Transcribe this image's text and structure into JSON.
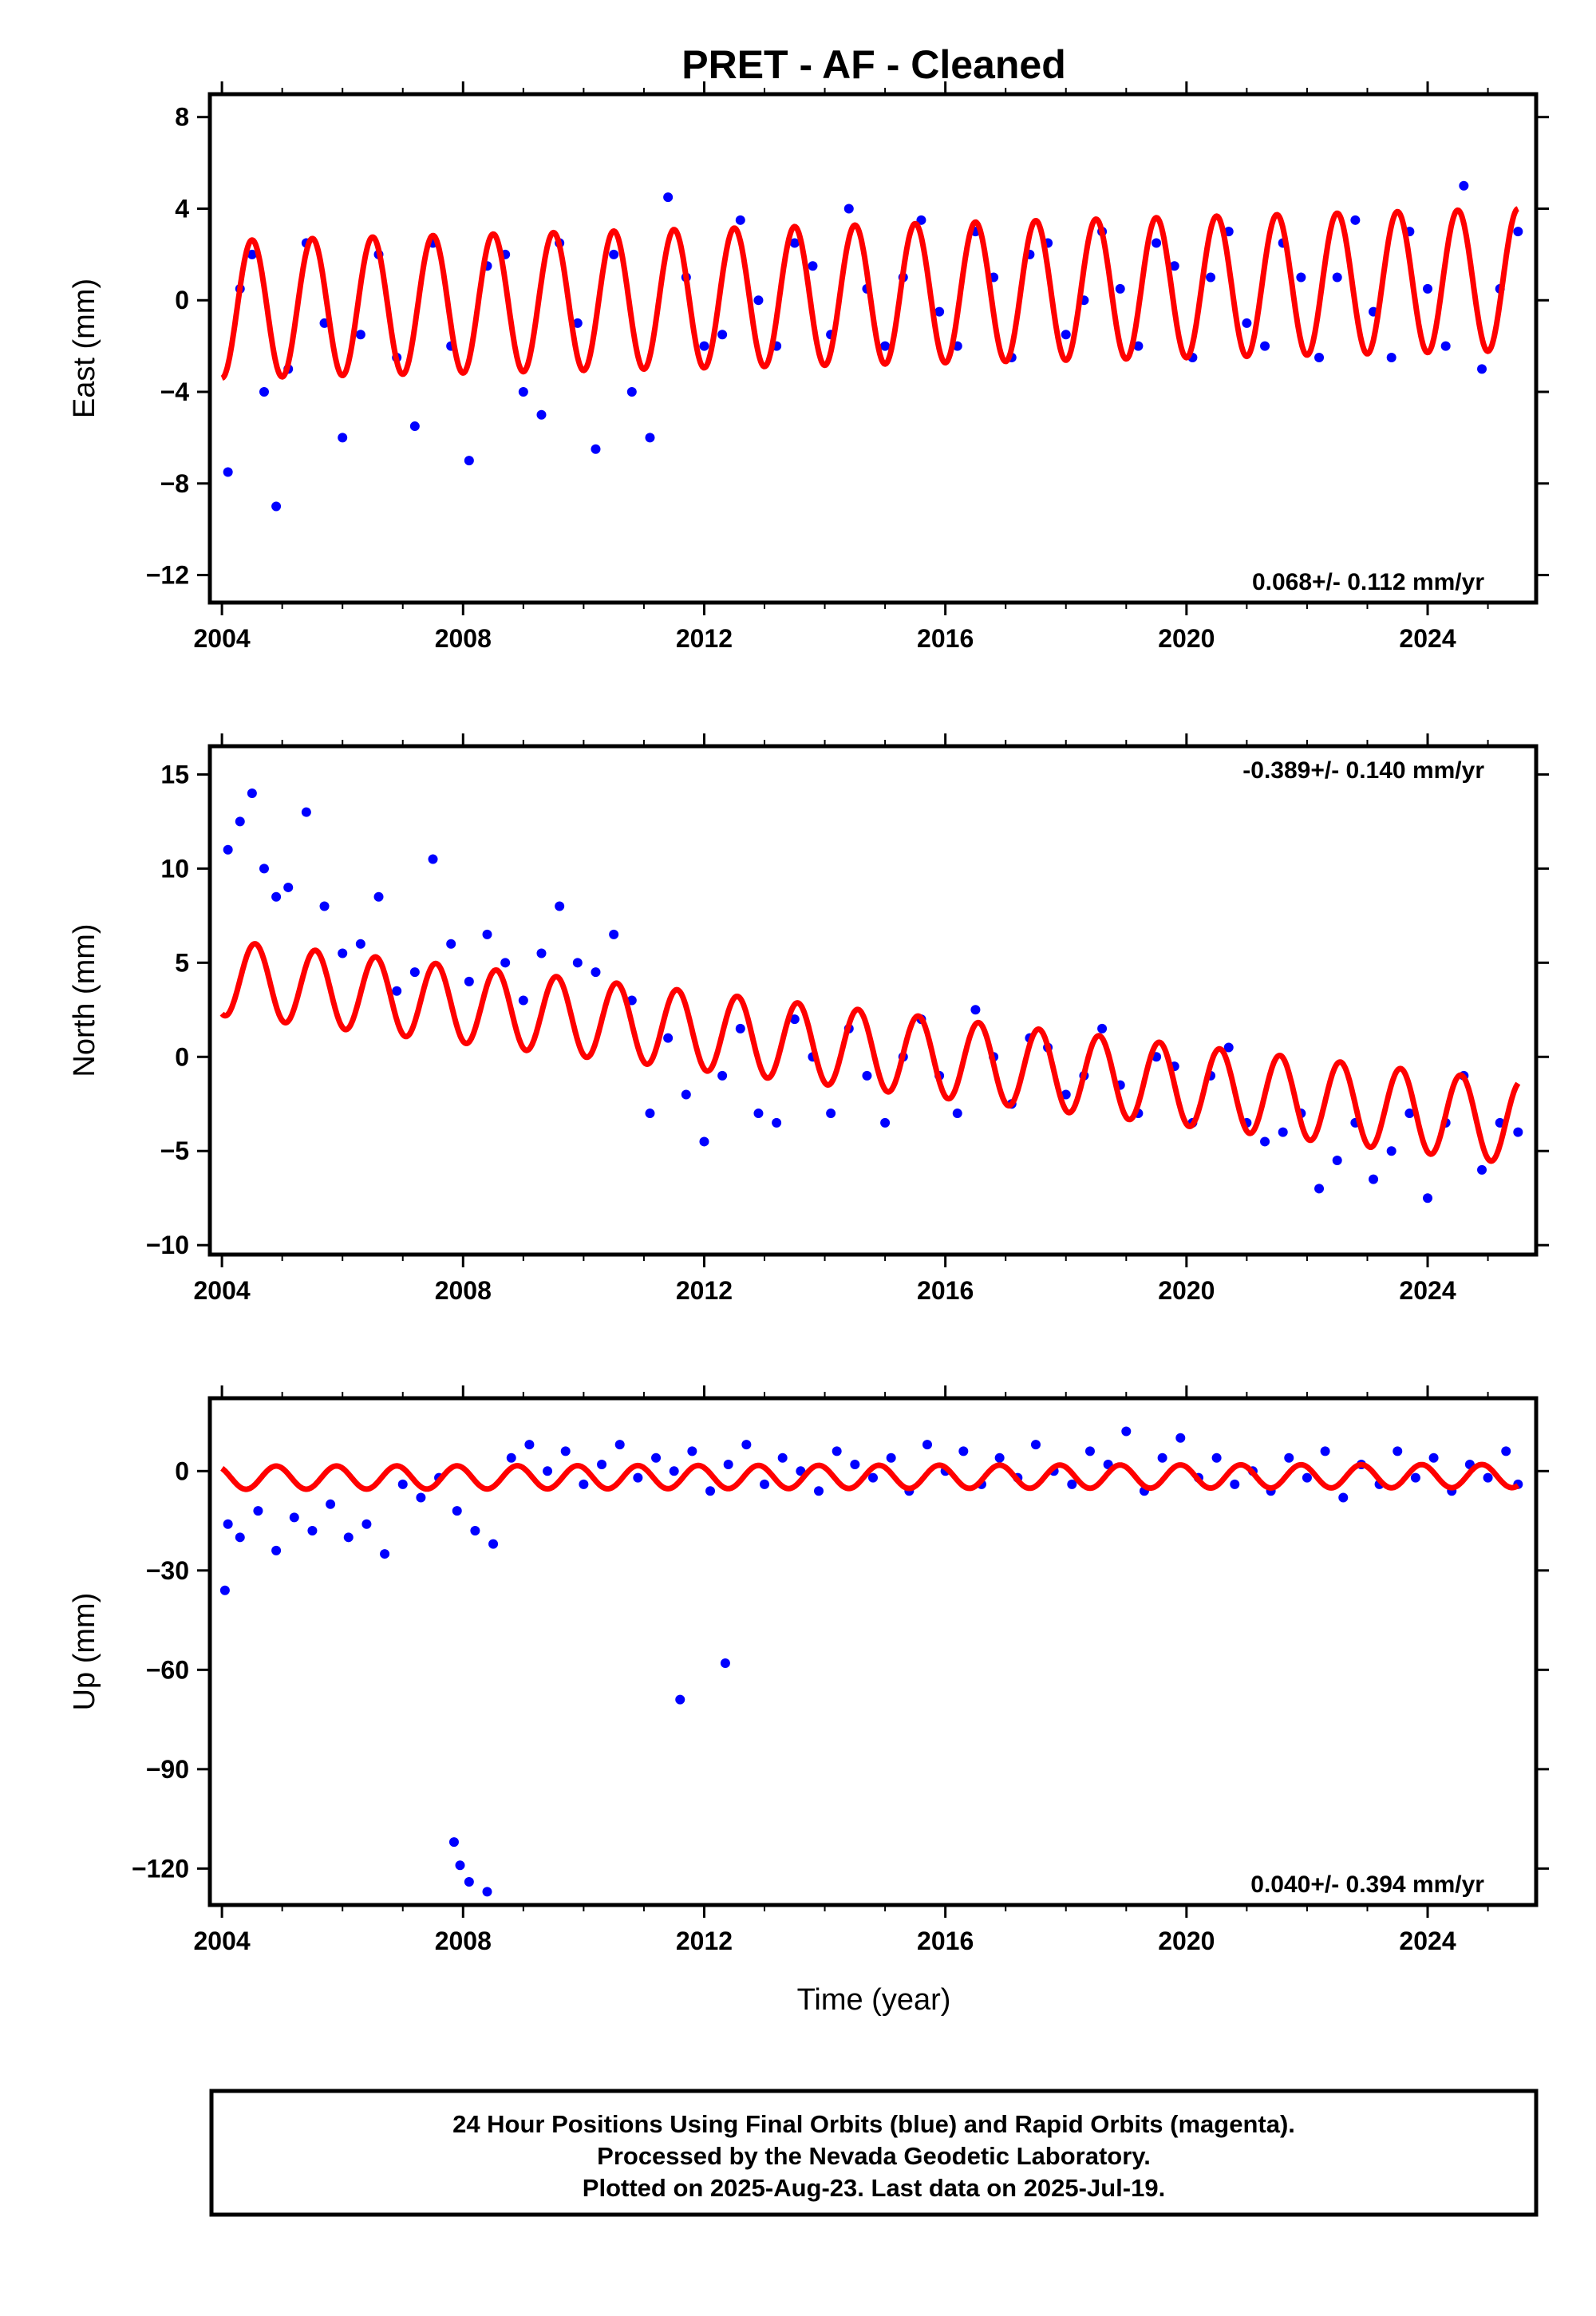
{
  "chart_data": {
    "type": "scatter",
    "title": "PRET  - AF - Cleaned",
    "xlabel": "Time (year)",
    "xlim": [
      2003.8,
      2025.8
    ],
    "x_ticks": [
      2004,
      2008,
      2012,
      2016,
      2020,
      2024
    ],
    "colors": {
      "observed": "#0000ff",
      "model": "#ff0000",
      "frame": "#000000"
    },
    "panels": [
      {
        "id": "east",
        "ylabel": "East (mm)",
        "ylim": [
          -13.2,
          9.0
        ],
        "y_ticks": [
          8,
          4,
          0,
          -4,
          -8,
          -12
        ],
        "y_tick_labels": [
          "8",
          "4",
          "0",
          "−4",
          "−8",
          "−12"
        ],
        "rate_text": "0.068+/- 0.112 mm/yr",
        "rate_position": "bottom-right",
        "series": [
          {
            "type": "scatter",
            "color": "#0000ff",
            "x": [
              2004.1,
              2004.3,
              2004.5,
              2004.7,
              2004.9,
              2005.1,
              2005.4,
              2005.7,
              2006.0,
              2006.3,
              2006.6,
              2006.9,
              2007.2,
              2007.5,
              2007.8,
              2008.1,
              2008.4,
              2008.7,
              2009.0,
              2009.3,
              2009.6,
              2009.9,
              2010.2,
              2010.5,
              2010.8,
              2011.1,
              2011.4,
              2011.7,
              2012.0,
              2012.3,
              2012.6,
              2012.9,
              2013.2,
              2013.5,
              2013.8,
              2014.1,
              2014.4,
              2014.7,
              2015.0,
              2015.3,
              2015.6,
              2015.9,
              2016.2,
              2016.5,
              2016.8,
              2017.1,
              2017.4,
              2017.7,
              2018.0,
              2018.3,
              2018.6,
              2018.9,
              2019.2,
              2019.5,
              2019.8,
              2020.1,
              2020.4,
              2020.7,
              2021.0,
              2021.3,
              2021.6,
              2021.9,
              2022.2,
              2022.5,
              2022.8,
              2023.1,
              2023.4,
              2023.7,
              2024.0,
              2024.3,
              2024.6,
              2024.9,
              2025.2,
              2025.5
            ],
            "y": [
              -7.5,
              0.5,
              2.0,
              -4.0,
              -9.0,
              -3.0,
              2.5,
              -1.0,
              -6.0,
              -1.5,
              2.0,
              -2.5,
              -5.5,
              2.5,
              -2.0,
              -7.0,
              1.5,
              2.0,
              -4.0,
              -5.0,
              2.5,
              -1.0,
              -6.5,
              2.0,
              -4.0,
              -6.0,
              4.5,
              1.0,
              -2.0,
              -1.5,
              3.5,
              0.0,
              -2.0,
              2.5,
              1.5,
              -1.5,
              4.0,
              0.5,
              -2.0,
              1.0,
              3.5,
              -0.5,
              -2.0,
              3.0,
              1.0,
              -2.5,
              2.0,
              2.5,
              -1.5,
              0.0,
              3.0,
              0.5,
              -2.0,
              2.5,
              1.5,
              -2.5,
              1.0,
              3.0,
              -1.0,
              -2.0,
              2.5,
              1.0,
              -2.5,
              1.0,
              3.5,
              -0.5,
              -2.5,
              3.0,
              0.5,
              -2.0,
              5.0,
              -3.0,
              0.5,
              3.0
            ]
          },
          {
            "type": "line",
            "color": "#ff0000",
            "seasonal": true,
            "x": [
              2004.0,
              2025.5
            ],
            "mean": [
              -0.4,
              0.9
            ],
            "amplitude": [
              3.0,
              3.1
            ],
            "peak_phase": 0.5
          }
        ]
      },
      {
        "id": "north",
        "ylabel": "North (mm)",
        "ylim": [
          -10.5,
          16.5
        ],
        "y_ticks": [
          15,
          10,
          5,
          0,
          -5,
          -10
        ],
        "y_tick_labels": [
          "15",
          "10",
          "5",
          "0",
          "−5",
          "−10"
        ],
        "rate_text": "-0.389+/- 0.140 mm/yr",
        "rate_position": "top-right",
        "series": [
          {
            "type": "scatter",
            "color": "#0000ff",
            "x": [
              2004.1,
              2004.3,
              2004.5,
              2004.7,
              2004.9,
              2005.1,
              2005.4,
              2005.7,
              2006.0,
              2006.3,
              2006.6,
              2006.9,
              2007.2,
              2007.5,
              2007.8,
              2008.1,
              2008.4,
              2008.7,
              2009.0,
              2009.3,
              2009.6,
              2009.9,
              2010.2,
              2010.5,
              2010.8,
              2011.1,
              2011.4,
              2011.7,
              2012.0,
              2012.3,
              2012.6,
              2012.9,
              2013.2,
              2013.5,
              2013.8,
              2014.1,
              2014.4,
              2014.7,
              2015.0,
              2015.3,
              2015.6,
              2015.9,
              2016.2,
              2016.5,
              2016.8,
              2017.1,
              2017.4,
              2017.7,
              2018.0,
              2018.3,
              2018.6,
              2018.9,
              2019.2,
              2019.5,
              2019.8,
              2020.1,
              2020.4,
              2020.7,
              2021.0,
              2021.3,
              2021.6,
              2021.9,
              2022.2,
              2022.5,
              2022.8,
              2023.1,
              2023.4,
              2023.7,
              2024.0,
              2024.3,
              2024.6,
              2024.9,
              2025.2,
              2025.5
            ],
            "y": [
              11.0,
              12.5,
              14.0,
              10.0,
              8.5,
              9.0,
              13.0,
              8.0,
              5.5,
              6.0,
              8.5,
              3.5,
              4.5,
              10.5,
              6.0,
              4.0,
              6.5,
              5.0,
              3.0,
              5.5,
              8.0,
              5.0,
              4.5,
              6.5,
              3.0,
              -3.0,
              1.0,
              -2.0,
              -4.5,
              -1.0,
              1.5,
              -3.0,
              -3.5,
              2.0,
              0.0,
              -3.0,
              1.5,
              -1.0,
              -3.5,
              0.0,
              2.0,
              -1.0,
              -3.0,
              2.5,
              0.0,
              -2.5,
              1.0,
              0.5,
              -2.0,
              -1.0,
              1.5,
              -1.5,
              -3.0,
              0.0,
              -0.5,
              -3.5,
              -1.0,
              0.5,
              -3.5,
              -4.5,
              -4.0,
              -3.0,
              -7.0,
              -5.5,
              -3.5,
              -6.5,
              -5.0,
              -3.0,
              -7.5,
              -3.5,
              -1.0,
              -6.0,
              -3.5,
              -4.0
            ]
          },
          {
            "type": "line",
            "color": "#ff0000",
            "seasonal": true,
            "x": [
              2004.0,
              2025.5
            ],
            "mean": [
              4.2,
              -3.5
            ],
            "amplitude": [
              2.0,
              2.2
            ],
            "peak_phase": 0.55
          }
        ]
      },
      {
        "id": "up",
        "ylabel": "Up (mm)",
        "ylim": [
          -131,
          22
        ],
        "y_ticks": [
          0,
          -30,
          -60,
          -90,
          -120
        ],
        "y_tick_labels": [
          "0",
          "−30",
          "−60",
          "−90",
          "−120"
        ],
        "rate_text": "0.040+/- 0.394 mm/yr",
        "rate_position": "bottom-right",
        "series": [
          {
            "type": "scatter",
            "color": "#0000ff",
            "x": [
              2004.1,
              2004.3,
              2004.6,
              2004.9,
              2005.2,
              2005.5,
              2005.8,
              2006.1,
              2006.4,
              2006.7,
              2007.0,
              2007.3,
              2007.6,
              2007.9,
              2008.2,
              2008.5,
              2008.8,
              2009.1,
              2009.4,
              2009.7,
              2010.0,
              2010.3,
              2010.6,
              2010.9,
              2011.2,
              2011.5,
              2011.8,
              2012.1,
              2012.4,
              2012.7,
              2013.0,
              2013.3,
              2013.6,
              2013.9,
              2014.2,
              2014.5,
              2014.8,
              2015.1,
              2015.4,
              2015.7,
              2016.0,
              2016.3,
              2016.6,
              2016.9,
              2017.2,
              2017.5,
              2017.8,
              2018.1,
              2018.4,
              2018.7,
              2019.0,
              2019.3,
              2019.6,
              2019.9,
              2020.2,
              2020.5,
              2020.8,
              2021.1,
              2021.4,
              2021.7,
              2022.0,
              2022.3,
              2022.6,
              2022.9,
              2023.2,
              2023.5,
              2023.8,
              2024.1,
              2024.4,
              2024.7,
              2025.0,
              2025.3,
              2025.5,
              2004.05,
              2007.85,
              2007.95,
              2008.1,
              2008.4,
              2011.6,
              2012.35
            ],
            "y": [
              -16,
              -20,
              -12,
              -24,
              -14,
              -18,
              -10,
              -20,
              -16,
              -25,
              -4,
              -8,
              -2,
              -12,
              -18,
              -22,
              4,
              8,
              0,
              6,
              -4,
              2,
              8,
              -2,
              4,
              0,
              6,
              -6,
              2,
              8,
              -4,
              4,
              0,
              -6,
              6,
              2,
              -2,
              4,
              -6,
              8,
              0,
              6,
              -4,
              4,
              -2,
              8,
              0,
              -4,
              6,
              2,
              12,
              -6,
              4,
              10,
              -2,
              4,
              -4,
              0,
              -6,
              4,
              -2,
              6,
              -8,
              2,
              -4,
              6,
              -2,
              4,
              -6,
              2,
              -2,
              6,
              -4,
              -36,
              -112,
              -119,
              -124,
              -127,
              -69,
              -58
            ]
          },
          {
            "type": "line",
            "color": "#ff0000",
            "seasonal": true,
            "x": [
              2004.0,
              2025.5
            ],
            "mean": [
              -2.0,
              -1.5
            ],
            "amplitude": [
              3.5,
              3.5
            ],
            "peak_phase": 0.9
          }
        ]
      }
    ]
  },
  "footer": {
    "lines": [
      "24 Hour Positions Using Final Orbits (blue) and Rapid Orbits (magenta).",
      "Processed by the Nevada Geodetic Laboratory.",
      "Plotted on 2025-Aug-23. Last data on 2025-Jul-19."
    ]
  }
}
